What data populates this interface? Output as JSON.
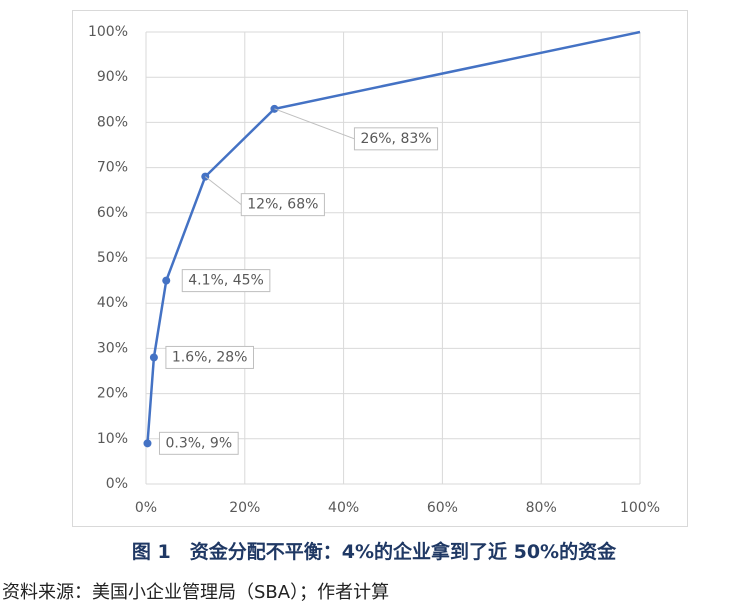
{
  "chart_data": {
    "type": "line",
    "x": [
      0.3,
      1.6,
      4.1,
      12,
      26,
      100
    ],
    "series": [
      {
        "color": "#4472c4",
        "values": [
          9,
          28,
          45,
          68,
          83,
          100
        ],
        "value_labels": [
          "0.3%, 9%",
          "1.6%, 28%",
          "4.1%, 45%",
          "12%, 68%",
          "26%, 83%",
          null
        ]
      }
    ],
    "xlim": [
      0,
      100
    ],
    "xticks": [
      {
        "value": 0,
        "label": "0%"
      },
      {
        "value": 20,
        "label": "20%"
      },
      {
        "value": 40,
        "label": "40%"
      },
      {
        "value": 60,
        "label": "60%"
      },
      {
        "value": 80,
        "label": "80%"
      },
      {
        "value": 100,
        "label": "100%"
      }
    ],
    "ylim": [
      0,
      100
    ],
    "yticks": [
      {
        "value": 0,
        "label": "0%"
      },
      {
        "value": 10,
        "label": "10%"
      },
      {
        "value": 20,
        "label": "20%"
      },
      {
        "value": 30,
        "label": "30%"
      },
      {
        "value": 40,
        "label": "40%"
      },
      {
        "value": 50,
        "label": "50%"
      },
      {
        "value": 60,
        "label": "60%"
      },
      {
        "value": 70,
        "label": "70%"
      },
      {
        "value": 80,
        "label": "80%"
      },
      {
        "value": 90,
        "label": "90%"
      },
      {
        "value": 100,
        "label": "100%"
      }
    ],
    "grid": true
  },
  "caption": "图 1　资金分配不平衡：4%的企业拿到了近 50%的资金",
  "source": "资料来源：美国小企业管理局（SBA）；作者计算"
}
